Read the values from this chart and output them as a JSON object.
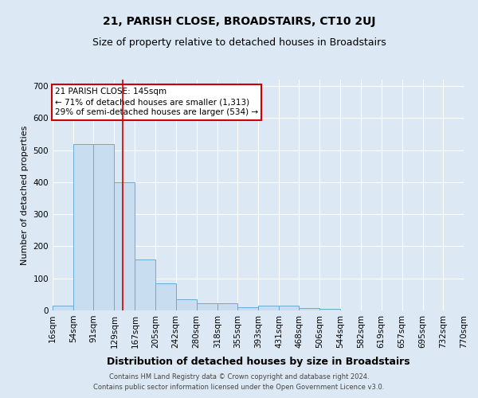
{
  "title": "21, PARISH CLOSE, BROADSTAIRS, CT10 2UJ",
  "subtitle": "Size of property relative to detached houses in Broadstairs",
  "xlabel": "Distribution of detached houses by size in Broadstairs",
  "ylabel": "Number of detached properties",
  "footnote1": "Contains HM Land Registry data © Crown copyright and database right 2024.",
  "footnote2": "Contains public sector information licensed under the Open Government Licence v3.0.",
  "bin_labels": [
    "16sqm",
    "54sqm",
    "91sqm",
    "129sqm",
    "167sqm",
    "205sqm",
    "242sqm",
    "280sqm",
    "318sqm",
    "355sqm",
    "393sqm",
    "431sqm",
    "468sqm",
    "506sqm",
    "544sqm",
    "582sqm",
    "619sqm",
    "657sqm",
    "695sqm",
    "732sqm",
    "770sqm"
  ],
  "bar_values": [
    15,
    520,
    520,
    400,
    160,
    85,
    35,
    22,
    22,
    10,
    15,
    15,
    7,
    4,
    0,
    0,
    0,
    0,
    0,
    0
  ],
  "bar_color": "#c9ddf0",
  "bar_edge_color": "#6aaad4",
  "red_line_x": 145,
  "bin_edges_numeric": [
    16,
    54,
    91,
    129,
    167,
    205,
    242,
    280,
    318,
    355,
    393,
    431,
    468,
    506,
    544,
    582,
    619,
    657,
    695,
    732,
    770
  ],
  "annotation_line1": "21 PARISH CLOSE: 145sqm",
  "annotation_line2": "← 71% of detached houses are smaller (1,313)",
  "annotation_line3": "29% of semi-detached houses are larger (534) →",
  "annotation_box_color": "white",
  "annotation_box_edge_color": "#cc0000",
  "ylim": [
    0,
    720
  ],
  "yticks": [
    0,
    100,
    200,
    300,
    400,
    500,
    600,
    700
  ],
  "bg_color": "#dce9f5",
  "plot_bg_color": "#dce9f5",
  "grid_color": "white",
  "title_fontsize": 10,
  "subtitle_fontsize": 9,
  "ylabel_fontsize": 8,
  "xlabel_fontsize": 9,
  "tick_fontsize": 7.5,
  "annotation_fontsize": 7.5,
  "footnote_fontsize": 6
}
